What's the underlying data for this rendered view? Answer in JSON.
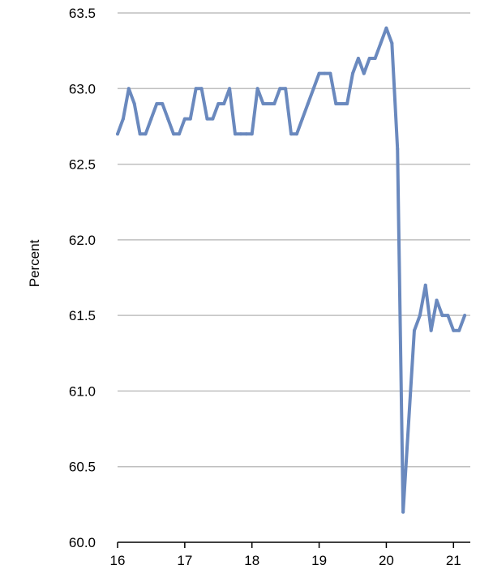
{
  "chart_data": {
    "type": "line",
    "ylabel": "Percent",
    "xlabel": "",
    "ylim": [
      60.0,
      63.5
    ],
    "xlim": [
      16,
      21.25
    ],
    "yticks": [
      "60.0",
      "60.5",
      "61.0",
      "61.5",
      "62.0",
      "62.5",
      "63.0",
      "63.5"
    ],
    "xticks": [
      "16",
      "17",
      "18",
      "19",
      "20",
      "21"
    ],
    "grid": "horizontal",
    "line_color": "#6a89be",
    "series": [
      {
        "x": [
          16.0,
          16.0833,
          16.1667,
          16.25,
          16.3333,
          16.4167,
          16.5,
          16.5833,
          16.6667,
          16.75,
          16.8333,
          16.9167,
          17.0,
          17.0833,
          17.1667,
          17.25,
          17.3333,
          17.4167,
          17.5,
          17.5833,
          17.6667,
          17.75,
          17.8333,
          17.9167,
          18.0,
          18.0833,
          18.1667,
          18.25,
          18.3333,
          18.4167,
          18.5,
          18.5833,
          18.6667,
          18.75,
          18.8333,
          18.9167,
          19.0,
          19.0833,
          19.1667,
          19.25,
          19.3333,
          19.4167,
          19.5,
          19.5833,
          19.6667,
          19.75,
          19.8333,
          19.9167,
          20.0,
          20.0833,
          20.1667,
          20.25,
          20.3333,
          20.4167,
          20.5,
          20.5833,
          20.6667,
          20.75,
          20.8333,
          20.9167,
          21.0,
          21.0833,
          21.1667
        ],
        "values": [
          62.7,
          62.8,
          63.0,
          62.9,
          62.7,
          62.7,
          62.8,
          62.9,
          62.9,
          62.8,
          62.7,
          62.7,
          62.8,
          62.8,
          63.0,
          63.0,
          62.8,
          62.8,
          62.9,
          62.9,
          63.0,
          62.7,
          62.7,
          62.7,
          62.7,
          63.0,
          62.9,
          62.9,
          62.9,
          63.0,
          63.0,
          62.7,
          62.7,
          62.8,
          62.9,
          63.0,
          63.1,
          63.1,
          63.1,
          62.9,
          62.9,
          62.9,
          63.1,
          63.2,
          63.1,
          63.2,
          63.2,
          63.3,
          63.4,
          63.3,
          62.6,
          60.2,
          60.8,
          61.4,
          61.5,
          61.7,
          61.4,
          61.6,
          61.5,
          61.5,
          61.4,
          61.4,
          61.5
        ]
      }
    ]
  }
}
